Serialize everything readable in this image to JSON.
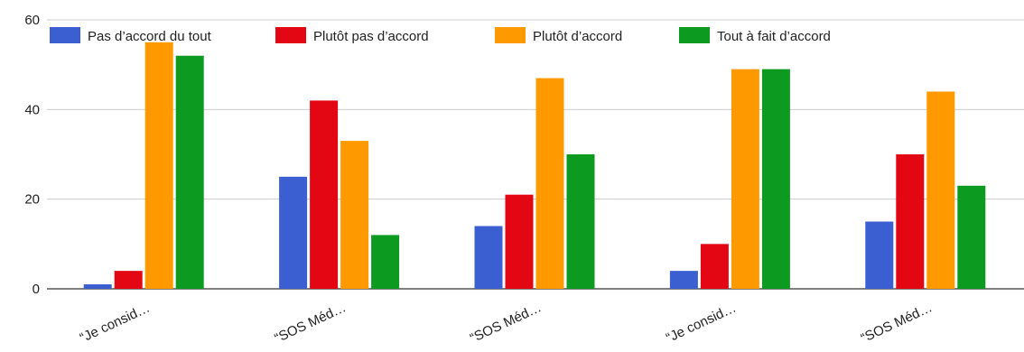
{
  "chart_data": {
    "type": "bar",
    "title": "",
    "xlabel": "",
    "ylabel": "",
    "ylim": [
      0,
      60
    ],
    "yticks": [
      0,
      20,
      40,
      60
    ],
    "grid": true,
    "legend_position": "top",
    "categories": [
      "“Je consid…",
      "“SOS Méd…",
      "“SOS Méd…",
      "“Je consid…",
      "“SOS Méd…"
    ],
    "series": [
      {
        "name": "Pas d’accord du tout",
        "color": "#3b5fd1",
        "values": [
          1,
          25,
          14,
          4,
          15
        ]
      },
      {
        "name": "Plutôt pas d’accord",
        "color": "#e30613",
        "values": [
          4,
          42,
          21,
          10,
          30
        ]
      },
      {
        "name": "Plutôt d’accord",
        "color": "#ff9900",
        "values": [
          55,
          33,
          47,
          49,
          44
        ]
      },
      {
        "name": "Tout à fait d’accord",
        "color": "#0c9a21",
        "values": [
          52,
          12,
          30,
          49,
          23
        ]
      }
    ]
  }
}
